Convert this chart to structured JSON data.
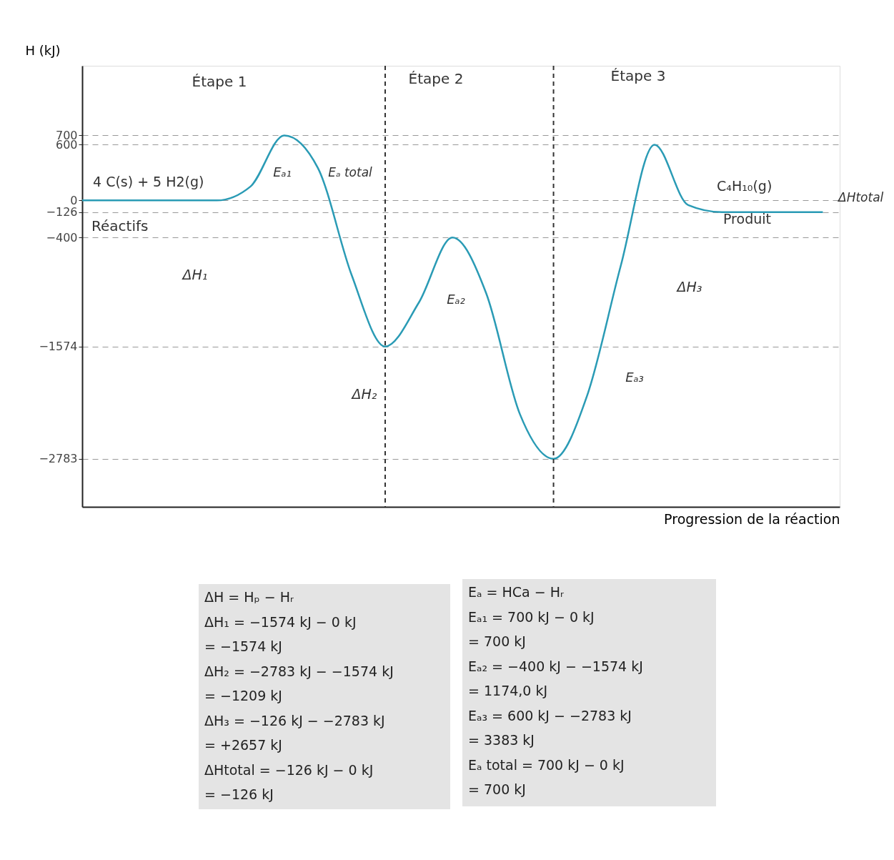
{
  "chart_data": {
    "type": "line",
    "ylabel": "H (kJ)",
    "xlabel": "Progression de la réaction",
    "categories": [
      null,
      null,
      null,
      null,
      null,
      null,
      null,
      null,
      null,
      null,
      null,
      null,
      null,
      null,
      null,
      null,
      null,
      null,
      null,
      null,
      null,
      null,
      null
    ],
    "series": [
      {
        "color": "#2a9bb5",
        "values": [
          0,
          0,
          0,
          0,
          0,
          150,
          700,
          350,
          -800,
          -1574,
          -1100,
          -400,
          -1000,
          -2300,
          -2783,
          -2100,
          -700,
          600,
          -50,
          -126,
          -126,
          -126,
          -126
        ]
      }
    ],
    "ylim": [
      -3300,
      1450
    ],
    "yticks": [
      700,
      600,
      0,
      -126,
      -400,
      -1574,
      -2783
    ],
    "grid": "y",
    "marker": "none",
    "line_style": "solid",
    "annotations": [
      "Étape 1",
      "Étape 2",
      "Étape 3",
      "4 C(s) + 5 H2(g)",
      "Réactifs",
      "C₄H₁₀(g)",
      "Produit",
      "ΔH₁",
      "ΔH₂",
      "ΔH₃",
      "ΔHtotal",
      "Eₐ₁",
      "Eₐ total",
      "Eₐ₂",
      "Eₐ₃",
      "ΔH = Hₚ − Hᵣ\nΔH₁ = −1574 kJ − 0 kJ\n= −1574 kJ\nΔH₂ = −2783 kJ − −1574 kJ\n= −1209 kJ\nΔH₃ = −126 kJ − −2783 kJ\n= +2657 kJ\nΔHtotal = −126 kJ − 0 kJ\n= −126 kJ",
      "Eₐ = HCa − Hᵣ\nEₐ₁ = 700 kJ − 0 kJ\n= 700 kJ\nEₐ₂ = −400 kJ − −1574 kJ\n= 1174,0 kJ\nEₐ₃ = 600 kJ − −2783 kJ\n= 3383 kJ\nEₐ total = 700 kJ − 0 kJ\n= 700 kJ"
    ]
  }
}
